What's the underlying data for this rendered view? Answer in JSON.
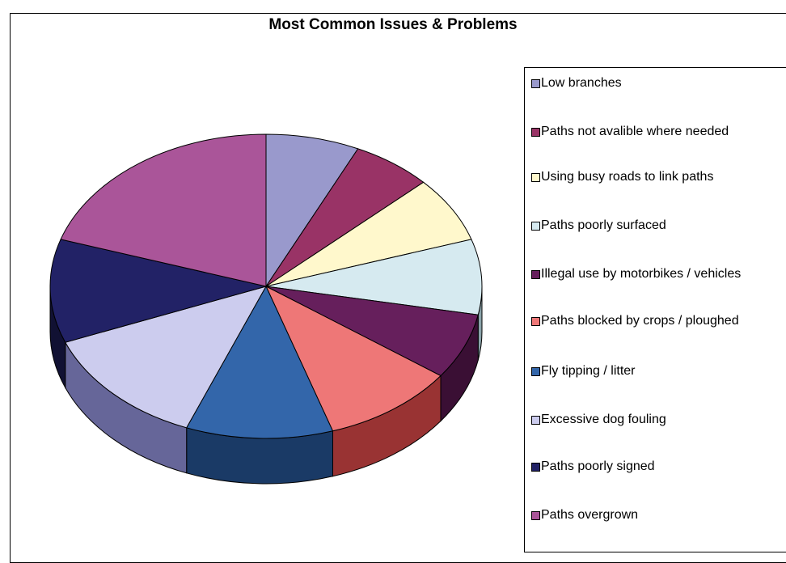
{
  "chart_data": {
    "type": "pie",
    "title": "Most Common Issues & Problems",
    "legend_position": "right",
    "slices": [
      {
        "label": "Low branches",
        "value": 7,
        "color": "#9999cc",
        "side_color": "#6a6a99"
      },
      {
        "label": "Paths not avalible where needed",
        "value": 6,
        "color": "#993366",
        "side_color": "#6b2447"
      },
      {
        "label": "Using busy roads to link paths",
        "value": 7,
        "color": "#fff8cc",
        "side_color": "#bdb78f"
      },
      {
        "label": "Paths poorly surfaced",
        "value": 8,
        "color": "#d6eaf0",
        "side_color": "#8aa3aa"
      },
      {
        "label": "Illegal use by motorbikes / vehicles",
        "value": 7,
        "color": "#661f5c",
        "side_color": "#3a0f34"
      },
      {
        "label": "Paths blocked by crops / ploughed",
        "value": 10,
        "color": "#ee7777",
        "side_color": "#993333"
      },
      {
        "label": "Fly tipping / litter",
        "value": 11,
        "color": "#3366aa",
        "side_color": "#1a3a66"
      },
      {
        "label": "Excessive dog fouling",
        "value": 13,
        "color": "#ccccee",
        "side_color": "#666699"
      },
      {
        "label": "Paths poorly signed",
        "value": 11,
        "color": "#222266",
        "side_color": "#111133"
      },
      {
        "label": "Paths overgrown",
        "value": 20,
        "color": "#aa5599",
        "side_color": "#773366"
      }
    ]
  }
}
